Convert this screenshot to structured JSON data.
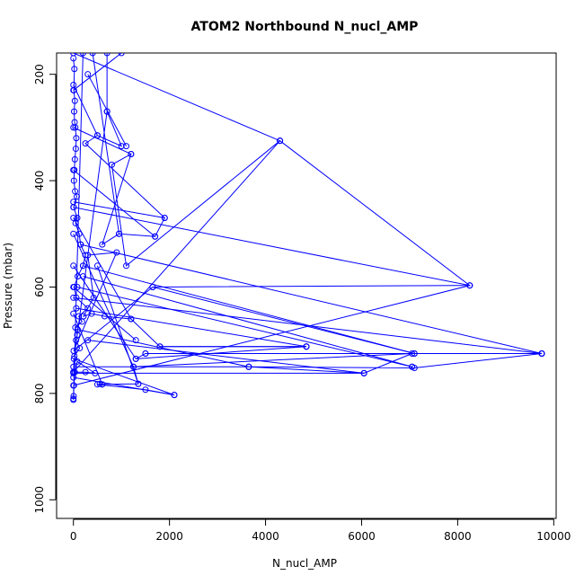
{
  "chart_data": {
    "type": "line",
    "title": "ATOM2 Northbound N_nucl_AMP",
    "xlabel": "N_nucl_AMP",
    "ylabel": "Pressure (mbar)",
    "xlim": [
      -350,
      10050
    ],
    "ylim": [
      1035,
      160
    ],
    "y_reversed": true,
    "x_ticks": [
      0,
      2000,
      4000,
      6000,
      8000,
      10000
    ],
    "y_ticks": [
      200,
      400,
      600,
      800,
      1000
    ],
    "x_tick_labels": [
      "0",
      "2000",
      "4000",
      "6000",
      "8000",
      "10000"
    ],
    "y_tick_labels": [
      "200",
      "400",
      "600",
      "800",
      "1000"
    ],
    "grid": false,
    "series": [
      {
        "color": "#0000ff",
        "marker": "open-circle",
        "x": [
          0,
          20,
          10,
          30,
          15,
          25,
          40,
          60,
          50,
          30,
          20,
          10,
          35,
          70,
          5,
          80,
          45,
          120,
          150,
          250,
          200,
          90,
          15,
          60,
          300,
          110,
          180,
          40,
          80,
          55,
          130,
          20,
          700,
          1000,
          500,
          250,
          1900,
          1700,
          950,
          600,
          1200,
          800,
          1100,
          4300,
          8250,
          1650,
          5,
          900,
          300,
          420,
          210,
          380,
          650,
          1200,
          1800,
          4850,
          1300,
          1500,
          9750,
          7100,
          3650,
          6050,
          7050,
          1250,
          1350,
          600,
          550,
          500,
          1500,
          2100,
          10,
          5,
          0,
          250,
          450,
          80,
          30,
          10,
          5,
          0
        ],
        "y": [
          170,
          190,
          230,
          250,
          270,
          290,
          300,
          320,
          340,
          360,
          380,
          400,
          420,
          430,
          450,
          470,
          480,
          500,
          520,
          540,
          560,
          580,
          600,
          620,
          640,
          655,
          665,
          676,
          690,
          700,
          715,
          730,
          270,
          335,
          315,
          330,
          470,
          505,
          500,
          520,
          350,
          370,
          560,
          325,
          597,
          600,
          720,
          535,
          540,
          620,
          655,
          650,
          655,
          660,
          712,
          712,
          735,
          725,
          725,
          752,
          750,
          762,
          725,
          750,
          782,
          783,
          782,
          783,
          793,
          803,
          735,
          760,
          760,
          760,
          762,
          740,
          760,
          785,
          805,
          812
        ]
      }
    ],
    "segments_note_free": true,
    "extra_segments": [
      [
        [
          0,
          160
        ],
        [
          4300,
          325
        ]
      ],
      [
        [
          4300,
          325
        ],
        [
          0,
          760
        ]
      ],
      [
        [
          0,
          450
        ],
        [
          8250,
          597
        ]
      ],
      [
        [
          8250,
          597
        ],
        [
          0,
          785
        ]
      ],
      [
        [
          150,
          520
        ],
        [
          9750,
          725
        ]
      ],
      [
        [
          0,
          620
        ],
        [
          9750,
          725
        ]
      ],
      [
        [
          200,
          560
        ],
        [
          7100,
          725
        ]
      ],
      [
        [
          80,
          600
        ],
        [
          7050,
          750
        ]
      ],
      [
        [
          200,
          580
        ],
        [
          7050,
          750
        ]
      ],
      [
        [
          60,
          640
        ],
        [
          4850,
          712
        ]
      ],
      [
        [
          90,
          680
        ],
        [
          3650,
          750
        ]
      ],
      [
        [
          300,
          700
        ],
        [
          6050,
          762
        ]
      ],
      [
        [
          0,
          762
        ],
        [
          6050,
          762
        ]
      ],
      [
        [
          0,
          750
        ],
        [
          3650,
          750
        ]
      ],
      [
        [
          1650,
          600
        ],
        [
          7100,
          725
        ]
      ],
      [
        [
          1900,
          470
        ],
        [
          0,
          440
        ]
      ],
      [
        [
          1700,
          505
        ],
        [
          0,
          380
        ]
      ],
      [
        [
          1100,
          335
        ],
        [
          300,
          200
        ]
      ],
      [
        [
          1200,
          350
        ],
        [
          0,
          300
        ]
      ],
      [
        [
          700,
          270
        ],
        [
          700,
          160
        ]
      ],
      [
        [
          950,
          500
        ],
        [
          400,
          160
        ]
      ],
      [
        [
          1000,
          160
        ],
        [
          0,
          230
        ]
      ],
      [
        [
          1800,
          712
        ],
        [
          4850,
          712
        ]
      ],
      [
        [
          1500,
          725
        ],
        [
          9750,
          725
        ]
      ],
      [
        [
          2100,
          803
        ],
        [
          0,
          770
        ]
      ],
      [
        [
          1350,
          782
        ],
        [
          500,
          560
        ]
      ],
      [
        [
          1250,
          750
        ],
        [
          0,
          500
        ]
      ],
      [
        [
          1300,
          735
        ],
        [
          0,
          560
        ]
      ],
      [
        [
          0,
          810
        ],
        [
          200,
          160
        ]
      ],
      [
        [
          1200,
          660
        ],
        [
          0,
          470
        ]
      ],
      [
        [
          0,
          600
        ],
        [
          1300,
          700
        ]
      ],
      [
        [
          600,
          783
        ],
        [
          0,
          650
        ]
      ],
      [
        [
          500,
          315
        ],
        [
          0,
          220
        ]
      ]
    ]
  }
}
